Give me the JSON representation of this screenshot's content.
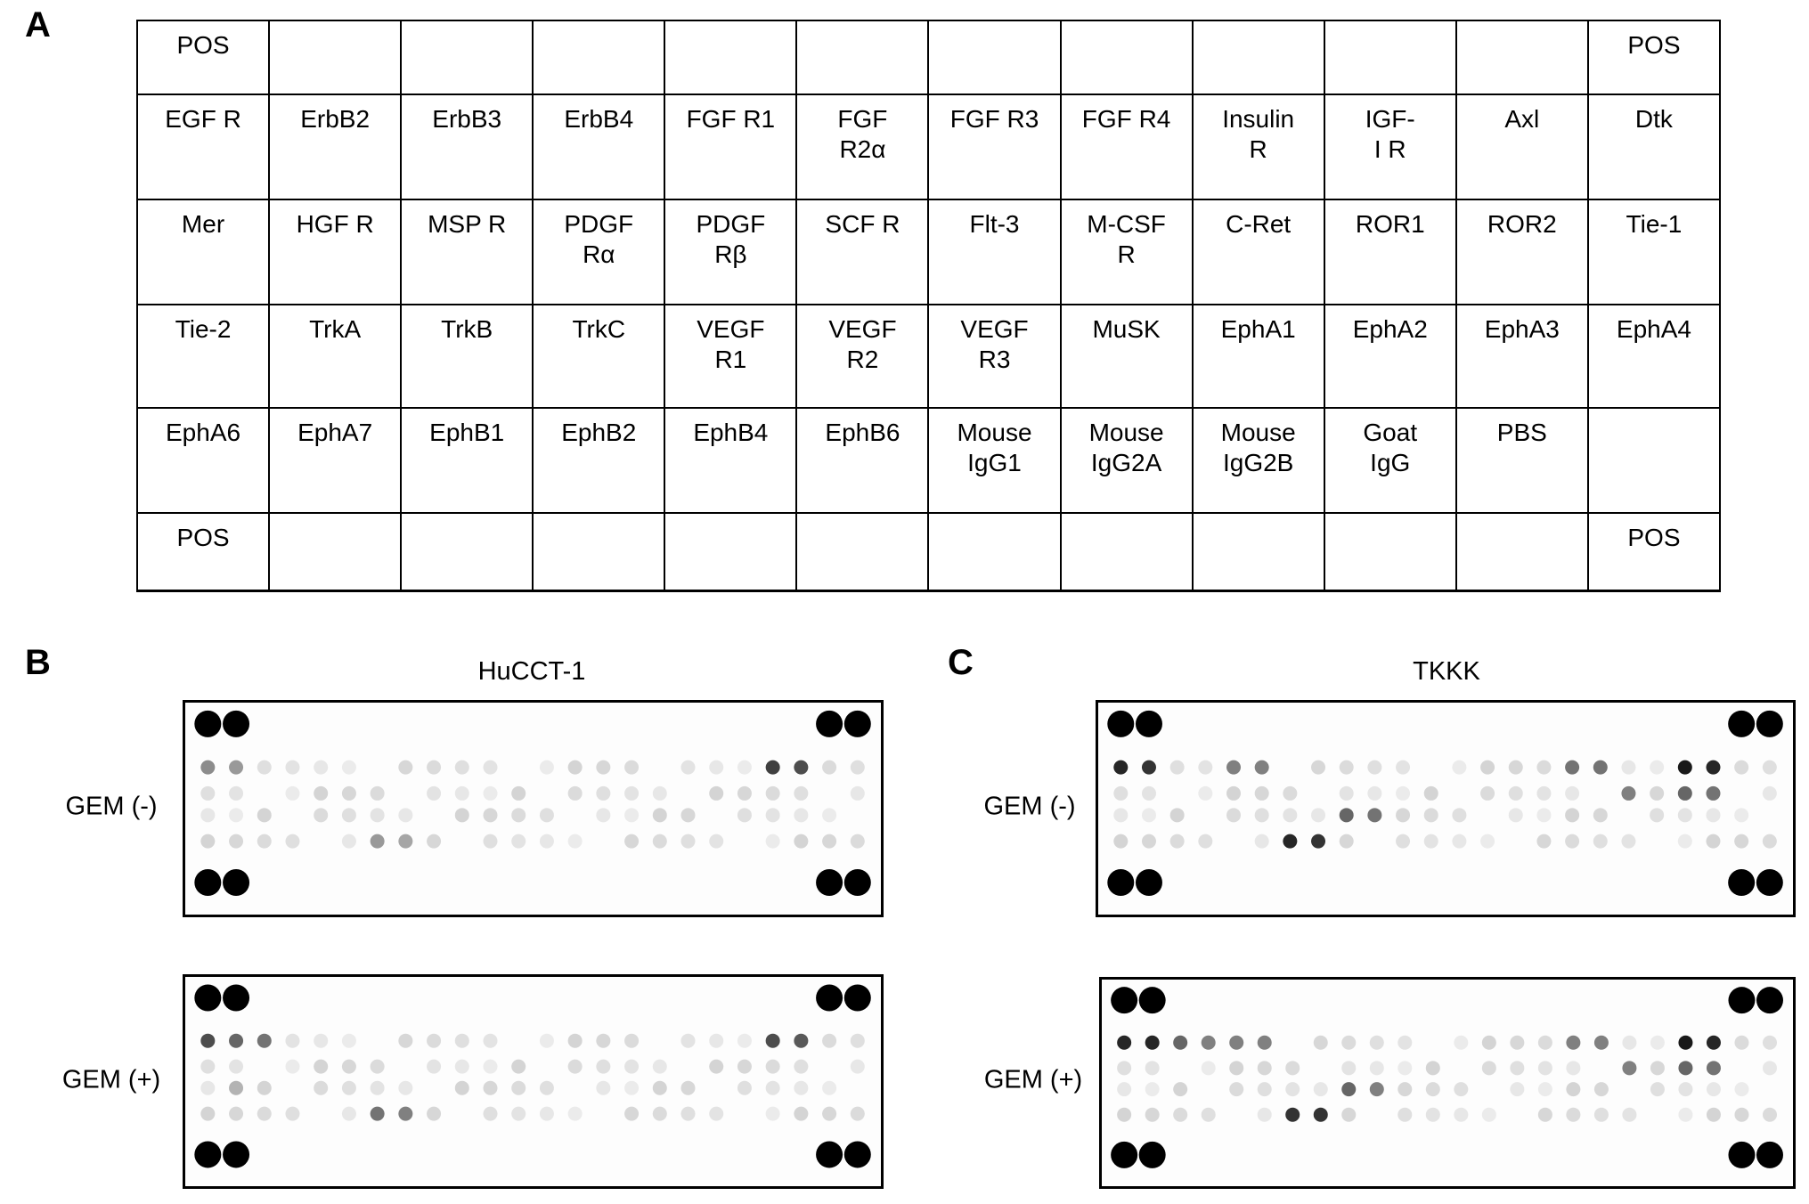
{
  "panel_a": {
    "label": "A",
    "table": {
      "rows": [
        [
          "POS",
          null,
          null,
          null,
          null,
          null,
          null,
          null,
          null,
          null,
          null,
          "POS"
        ],
        [
          "EGF R",
          "ErbB2",
          "ErbB3",
          "ErbB4",
          "FGF R1",
          "FGF\nR2α",
          "FGF R3",
          "FGF R4",
          "Insulin\nR",
          "IGF-\nI R",
          "Axl",
          "Dtk"
        ],
        [
          "Mer",
          "HGF R",
          "MSP R",
          "PDGF\nRα",
          "PDGF\nRβ",
          "SCF R",
          "Flt-3",
          "M-CSF\nR",
          "C-Ret",
          "ROR1",
          "ROR2",
          "Tie-1"
        ],
        [
          "Tie-2",
          "TrkA",
          "TrkB",
          "TrkC",
          "VEGF\nR1",
          "VEGF\nR2",
          "VEGF\nR3",
          "MuSK",
          "EphA1",
          "EphA2",
          "EphA3",
          "EphA4"
        ],
        [
          "EphA6",
          "EphA7",
          "EphB1",
          "EphB2",
          "EphB4",
          "EphB6",
          "Mouse\nIgG1",
          "Mouse\nIgG2A",
          "Mouse\nIgG2B",
          "Goat\nIgG",
          "PBS",
          null
        ],
        [
          "POS",
          null,
          null,
          null,
          null,
          null,
          null,
          null,
          null,
          null,
          null,
          "POS"
        ]
      ]
    }
  },
  "panel_b": {
    "label": "B",
    "title": "HuCCT-1",
    "row_labels": [
      "GEM (-)",
      "GEM (+)"
    ]
  },
  "panel_c": {
    "label": "C",
    "title": "TKKK",
    "row_labels": [
      "GEM (-)",
      "GEM (+)"
    ]
  }
}
